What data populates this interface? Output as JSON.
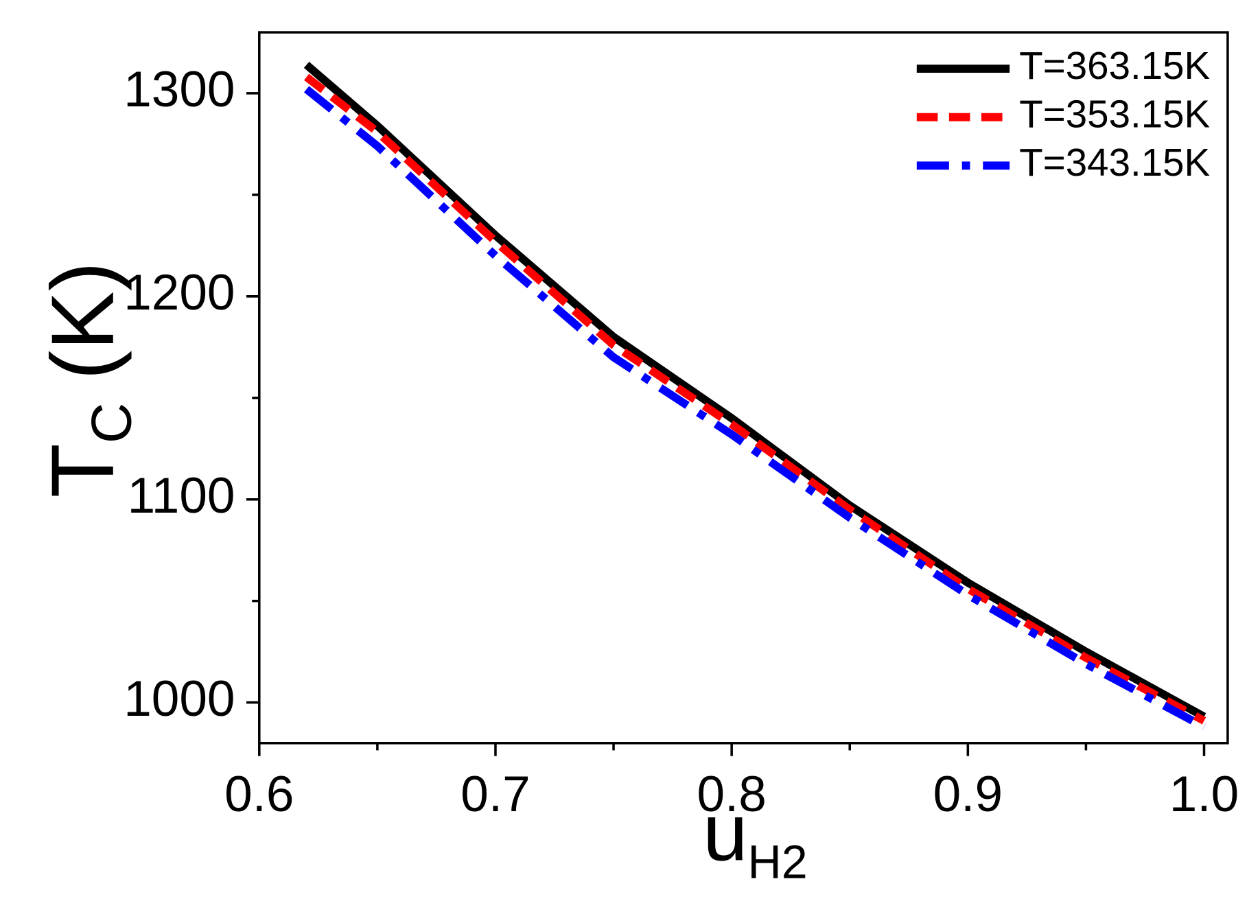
{
  "chart_data": {
    "type": "line",
    "xlabel": {
      "text": "u",
      "subscript": "H2"
    },
    "ylabel": {
      "text": "T",
      "subscript": "C",
      "suffix": "(K)"
    },
    "x": [
      0.62,
      0.65,
      0.7,
      0.75,
      0.8,
      0.85,
      0.9,
      0.95,
      1.0
    ],
    "series": [
      {
        "name": "T=363.15K",
        "color": "#000000",
        "linestyle": "solid",
        "values": [
          1314,
          1284,
          1230,
          1180,
          1140,
          1097,
          1059,
          1025,
          993
        ]
      },
      {
        "name": "T=353.15K",
        "color": "#ff0000",
        "linestyle": "dashed",
        "values": [
          1308,
          1281,
          1227,
          1176,
          1137,
          1095,
          1056,
          1022,
          991
        ]
      },
      {
        "name": "T=343.15K",
        "color": "#0000ff",
        "linestyle": "dashdot",
        "values": [
          1302,
          1274,
          1220,
          1170,
          1132,
          1091,
          1053,
          1019,
          988
        ]
      }
    ],
    "xlim": [
      0.6,
      1.01
    ],
    "ylim": [
      980,
      1330
    ],
    "xticks": [
      0.6,
      0.7,
      0.8,
      0.9,
      {
        "value": 1,
        "label": "1.0"
      }
    ],
    "xminorticks": [
      0.65,
      0.75,
      0.85,
      0.95
    ],
    "yticks": [
      1000,
      1100,
      1200,
      1300
    ],
    "yminorticks": [
      1050,
      1150,
      1250
    ],
    "legend": "upper right",
    "grid": false
  }
}
